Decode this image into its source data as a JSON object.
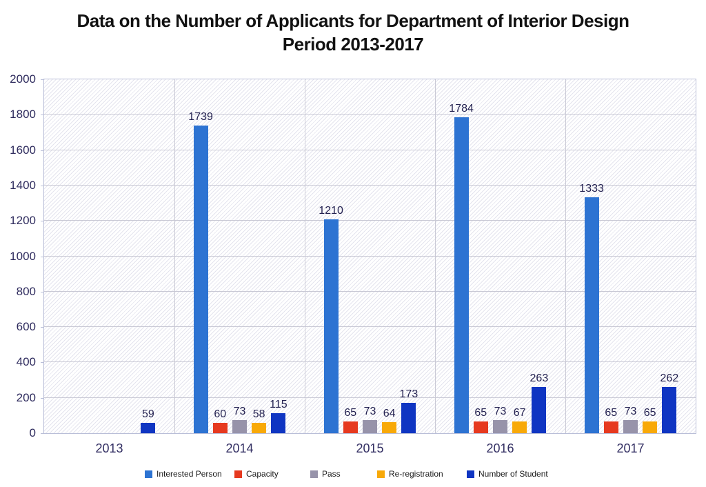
{
  "page": {
    "background": "#ffffff"
  },
  "chart_data": {
    "type": "bar",
    "title": "Data on the Number of Applicants for Department of Interior Design",
    "subtitle": "Period 2013-2017",
    "categories": [
      "2013",
      "2014",
      "2015",
      "2016",
      "2017"
    ],
    "series": [
      {
        "name": "Interested Person",
        "color": "#2d73d2",
        "values": [
          null,
          1739,
          1210,
          1784,
          1333
        ]
      },
      {
        "name": "Capacity",
        "color": "#e6391f",
        "values": [
          null,
          60,
          65,
          65,
          65
        ]
      },
      {
        "name": "Pass",
        "color": "#9793aa",
        "values": [
          null,
          73,
          73,
          73,
          73
        ]
      },
      {
        "name": "Re-registration",
        "color": "#f8a908",
        "values": [
          null,
          58,
          64,
          67,
          65
        ]
      },
      {
        "name": "Number of Student",
        "color": "#0f35c2",
        "values": [
          59,
          115,
          173,
          263,
          262
        ]
      }
    ],
    "ylim": [
      0,
      2000
    ],
    "ytick_step": 200,
    "grid": true,
    "legend_position": "bottom",
    "xlabel": "",
    "ylabel": ""
  },
  "style_colors": {
    "gridline": "#c9c9d5",
    "plot_border": "#b9bed8",
    "hatch_line": "#e4e4ee",
    "axis_tick_label": "#2f2c5e",
    "category_label": "#332f63",
    "value_label": "#232150",
    "title_text": "#121212",
    "legend_text": "#1c1c1c"
  }
}
